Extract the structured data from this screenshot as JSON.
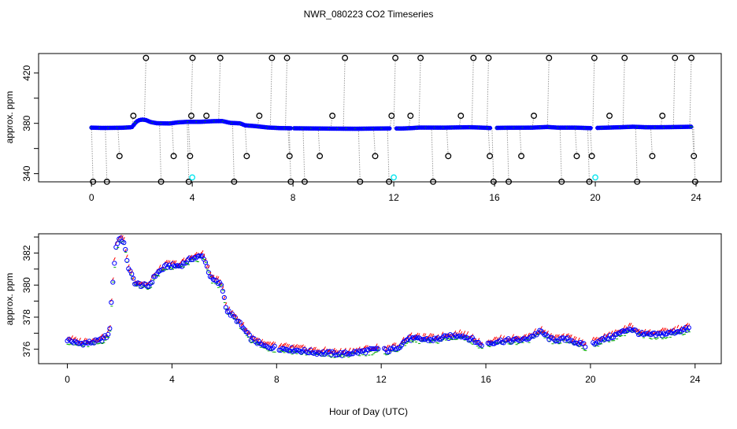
{
  "chart_data": [
    {
      "type": "scatter",
      "title": "NWR_080223  CO2 Timeseries",
      "ylabel": "approx. ppm",
      "xlabel": "",
      "xlim": [
        -2.1,
        25
      ],
      "ylim": [
        333.5,
        435.5
      ],
      "x_ticks": [
        "0",
        "4",
        "8",
        "12",
        "16",
        "20",
        "24"
      ],
      "y_ticks": [
        "340",
        "380",
        "420"
      ],
      "main_series_color": "#0000ff",
      "outlier_color": "#000000",
      "reference_color": "#00e5ee",
      "reference_points": [
        {
          "x": 4.0,
          "y": 337
        },
        {
          "x": 12.0,
          "y": 337
        },
        {
          "x": 20.0,
          "y": 337
        }
      ]
    },
    {
      "type": "scatter",
      "title": "",
      "ylabel": "approx. ppm",
      "xlabel": "Hour of Day (UTC)",
      "xlim": [
        -1.1,
        25
      ],
      "ylim": [
        375.1,
        383.2
      ],
      "x_ticks": [
        "0",
        "4",
        "8",
        "12",
        "16",
        "20",
        "24"
      ],
      "y_ticks": [
        "376",
        "378",
        "380",
        "382"
      ],
      "colors": {
        "blue": "#0000ff",
        "green": "#00aa00",
        "red": "#ff0000"
      },
      "knots": [
        [
          0,
          376.6
        ],
        [
          0.4,
          376.35
        ],
        [
          0.8,
          376.4
        ],
        [
          1.2,
          376.5
        ],
        [
          1.6,
          376.9
        ],
        [
          1.75,
          380.5
        ],
        [
          1.85,
          382.3
        ],
        [
          2.0,
          383.0
        ],
        [
          2.15,
          382.7
        ],
        [
          2.35,
          381.0
        ],
        [
          2.6,
          380.1
        ],
        [
          3.1,
          379.9
        ],
        [
          3.4,
          380.7
        ],
        [
          3.8,
          381.2
        ],
        [
          4.3,
          381.2
        ],
        [
          4.8,
          381.7
        ],
        [
          5.2,
          381.8
        ],
        [
          5.5,
          380.4
        ],
        [
          5.9,
          380.0
        ],
        [
          6.1,
          378.4
        ],
        [
          6.5,
          377.8
        ],
        [
          7.0,
          376.7
        ],
        [
          7.5,
          376.2
        ],
        [
          7.9,
          376.1
        ],
        [
          8.5,
          376.0
        ],
        [
          9.5,
          375.8
        ],
        [
          10.5,
          375.7
        ],
        [
          11.0,
          375.8
        ],
        [
          11.9,
          376.0
        ],
        [
          12.3,
          375.9
        ],
        [
          12.7,
          376.2
        ],
        [
          13.0,
          376.65
        ],
        [
          14.0,
          376.6
        ],
        [
          15.0,
          376.9
        ],
        [
          15.5,
          376.6
        ],
        [
          15.8,
          376.3
        ],
        [
          16.5,
          376.5
        ],
        [
          17.5,
          376.6
        ],
        [
          18.1,
          377.1
        ],
        [
          18.5,
          376.6
        ],
        [
          19.2,
          376.6
        ],
        [
          19.8,
          376.2
        ],
        [
          20.3,
          376.5
        ],
        [
          21.0,
          376.9
        ],
        [
          21.5,
          377.3
        ],
        [
          22.0,
          376.9
        ],
        [
          22.5,
          376.9
        ],
        [
          23.0,
          377.0
        ],
        [
          23.8,
          377.3
        ]
      ],
      "gaps": [
        [
          7.95,
          8.05
        ],
        [
          11.9,
          12.1
        ],
        [
          15.85,
          16.05
        ],
        [
          19.85,
          20.05
        ]
      ]
    }
  ]
}
